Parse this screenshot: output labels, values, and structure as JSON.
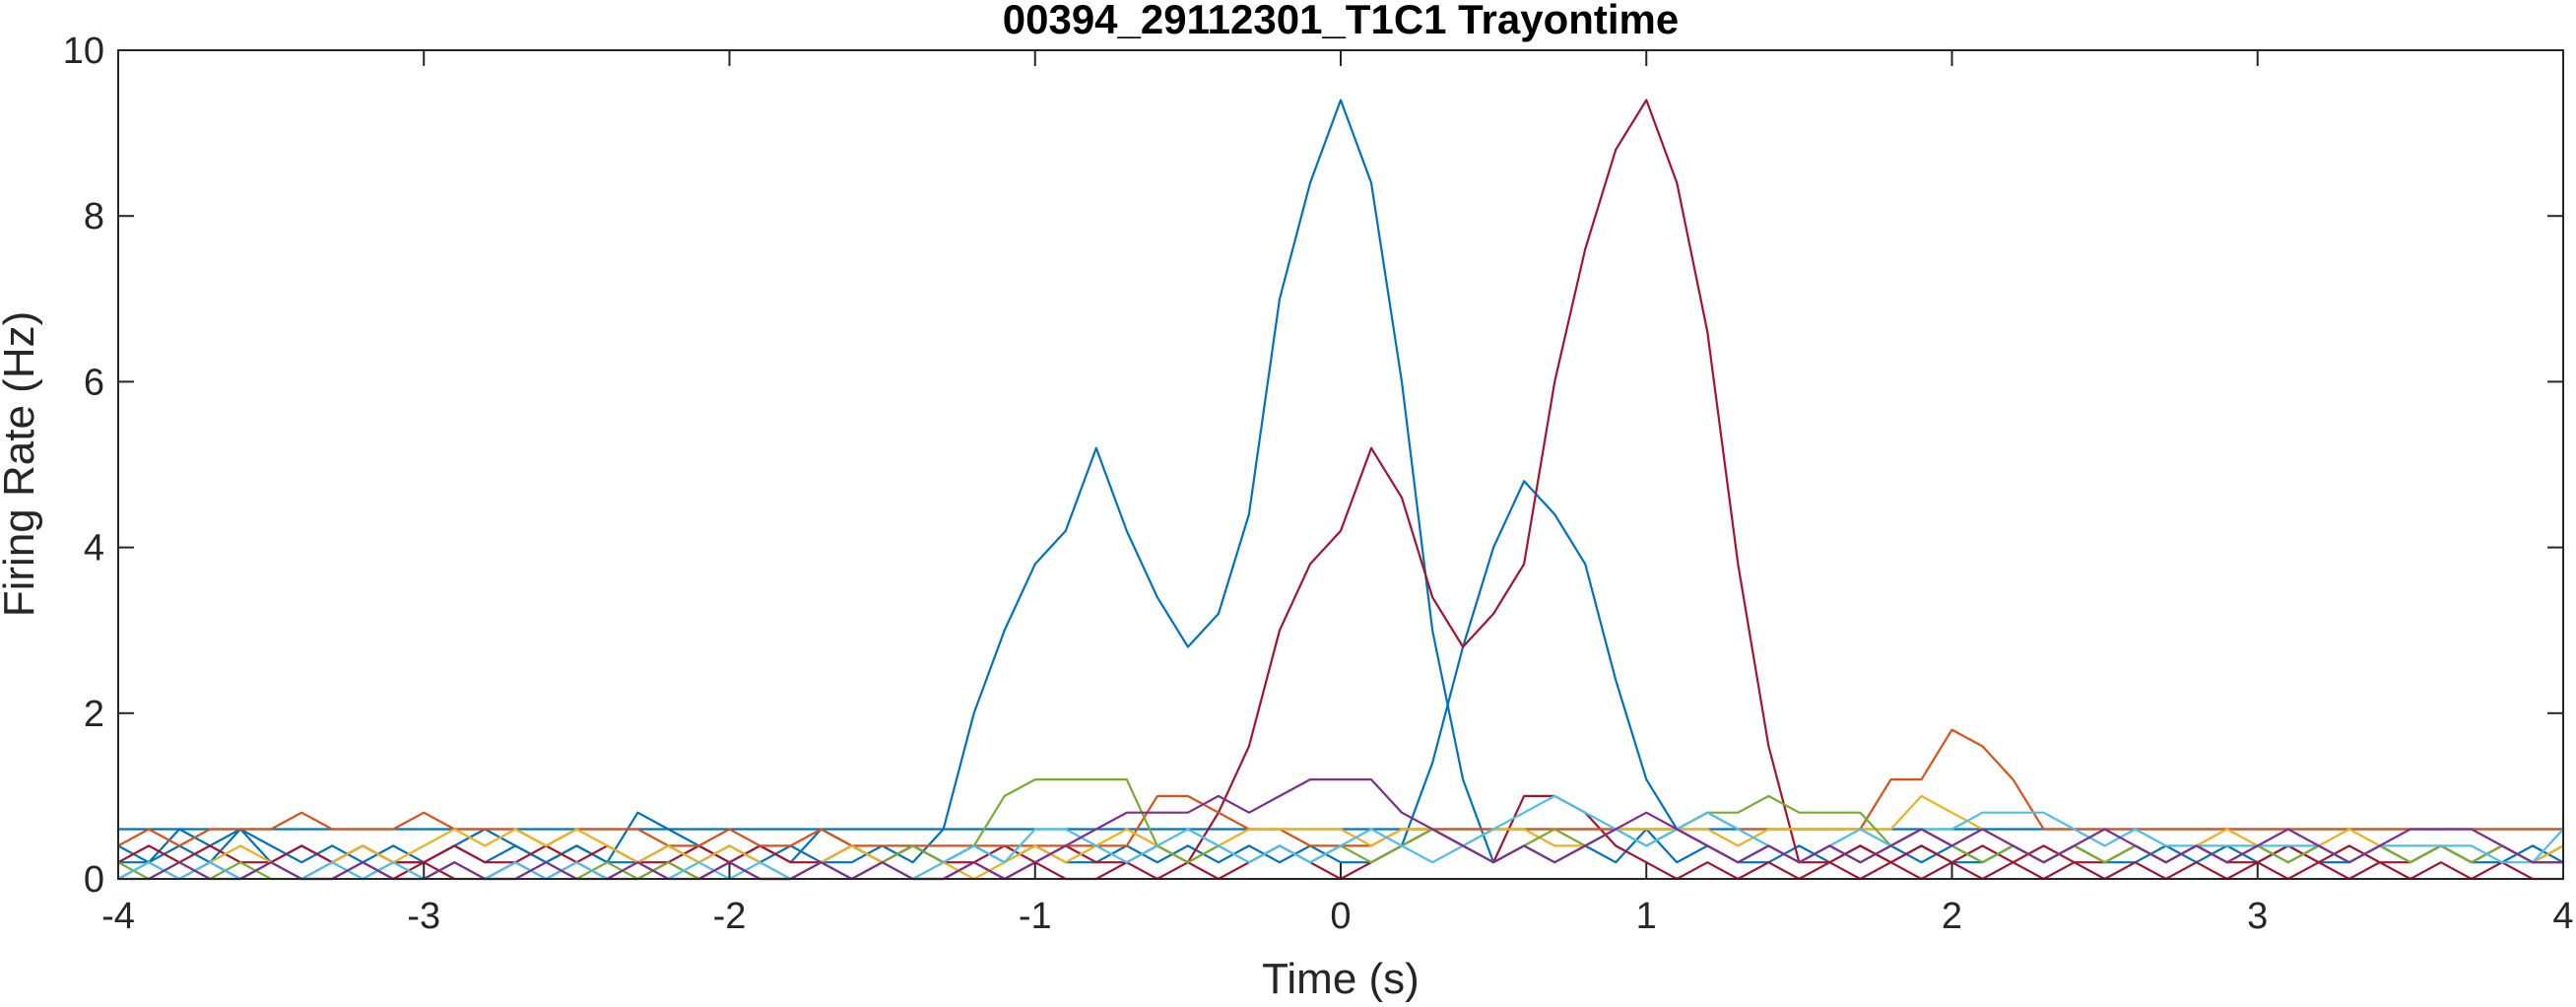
{
  "chart_data": {
    "type": "line",
    "title": "00394_29112301_T1C1 Trayontime",
    "xlabel": "Time (s)",
    "ylabel": "Firing Rate (Hz)",
    "xlim": [
      -4,
      4
    ],
    "ylim": [
      0,
      10
    ],
    "xticks": [
      "-4",
      "-3",
      "-2",
      "-1",
      "0",
      "1",
      "2",
      "3",
      "4"
    ],
    "yticks": [
      "0",
      "2",
      "4",
      "6",
      "8",
      "10"
    ],
    "grid": false,
    "legend": "none",
    "x": [
      -4.0,
      -3.9,
      -3.8,
      -3.7,
      -3.6,
      -3.5,
      -3.4,
      -3.3,
      -3.2,
      -3.1,
      -3.0,
      -2.9,
      -2.8,
      -2.7,
      -2.6,
      -2.5,
      -2.4,
      -2.3,
      -2.2,
      -2.1,
      -2.0,
      -1.9,
      -1.8,
      -1.7,
      -1.6,
      -1.5,
      -1.4,
      -1.3,
      -1.2,
      -1.1,
      -1.0,
      -0.9,
      -0.8,
      -0.7,
      -0.6,
      -0.5,
      -0.4,
      -0.3,
      -0.2,
      -0.1,
      0.0,
      0.1,
      0.2,
      0.3,
      0.4,
      0.5,
      0.6,
      0.7,
      0.8,
      0.9,
      1.0,
      1.1,
      1.2,
      1.3,
      1.4,
      1.5,
      1.6,
      1.7,
      1.8,
      1.9,
      2.0,
      2.1,
      2.2,
      2.3,
      2.4,
      2.5,
      2.6,
      2.7,
      2.8,
      2.9,
      3.0,
      3.1,
      3.2,
      3.3,
      3.4,
      3.5,
      3.6,
      3.7,
      3.8,
      3.9,
      4.0
    ],
    "series": [
      {
        "color": "#0072BD",
        "values": [
          0.6,
          0.6,
          0.6,
          0.6,
          0.6,
          0.6,
          0.6,
          0.6,
          0.6,
          0.6,
          0.6,
          0.6,
          0.6,
          0.6,
          0.6,
          0.6,
          0.6,
          0.6,
          0.6,
          0.6,
          0.6,
          0.6,
          0.6,
          0.6,
          0.6,
          0.6,
          0.6,
          0.6,
          0.6,
          0.6,
          0.6,
          0.6,
          0.6,
          0.6,
          0.6,
          0.6,
          0.6,
          0.6,
          0.6,
          0.6,
          0.6,
          0.6,
          0.6,
          0.6,
          0.6,
          0.6,
          0.6,
          0.6,
          0.6,
          0.6,
          0.6,
          0.6,
          0.6,
          0.6,
          0.6,
          0.6,
          0.6,
          0.6,
          0.6,
          0.6,
          0.6,
          0.6,
          0.6,
          0.6,
          0.6,
          0.6,
          0.6,
          0.6,
          0.6,
          0.6,
          0.6,
          0.6,
          0.6,
          0.6,
          0.6,
          0.6,
          0.6,
          0.6,
          0.6,
          0.6,
          0.6
        ]
      },
      {
        "color": "#0072BD",
        "values": [
          0.2,
          0.2,
          0.6,
          0.4,
          0.6,
          0.2,
          0.4,
          0.2,
          0.4,
          0.2,
          0.2,
          0.4,
          0.2,
          0.4,
          0.2,
          0.4,
          0.2,
          0.2,
          0.4,
          0.2,
          0.4,
          0.2,
          0.4,
          0.2,
          0.2,
          0.4,
          0.2,
          0.6,
          2.0,
          3.0,
          3.8,
          4.2,
          5.2,
          4.2,
          3.4,
          2.8,
          3.2,
          4.4,
          7.0,
          8.4,
          9.4,
          8.4,
          6.0,
          3.0,
          1.2,
          0.2,
          0.4,
          0.2,
          0.4,
          0.2,
          0.6,
          0.2,
          0.4,
          0.2,
          0.2,
          0.4,
          0.2,
          0.4,
          0.2,
          0.4,
          0.2,
          0.2,
          0.4,
          0.2,
          0.4,
          0.2,
          0.2,
          0.4,
          0.2,
          0.4,
          0.2,
          0.4,
          0.2,
          0.2,
          0.4,
          0.2,
          0.4,
          0.2,
          0.2,
          0.4,
          0.2
        ]
      },
      {
        "color": "#0072BD",
        "values": [
          0.4,
          0.2,
          0.4,
          0.2,
          0.6,
          0.4,
          0.2,
          0.4,
          0.2,
          0.4,
          0.2,
          0.4,
          0.6,
          0.4,
          0.2,
          0.4,
          0.2,
          0.8,
          0.6,
          0.4,
          0.2,
          0.4,
          0.2,
          0.6,
          0.4,
          0.2,
          0.4,
          0.2,
          0.4,
          0.2,
          0.4,
          0.2,
          0.2,
          0.4,
          0.2,
          0.4,
          0.2,
          0.4,
          0.2,
          0.4,
          0.2,
          0.2,
          0.4,
          1.4,
          2.8,
          4.0,
          4.8,
          4.4,
          3.8,
          2.4,
          1.2,
          0.6,
          0.4,
          0.2,
          0.4,
          0.2,
          0.4,
          0.2,
          0.4,
          0.2,
          0.4,
          0.2,
          0.4,
          0.2,
          0.4,
          0.2,
          0.4,
          0.2,
          0.4,
          0.2,
          0.4,
          0.2,
          0.4,
          0.2,
          0.4,
          0.2,
          0.4,
          0.2,
          0.4,
          0.2,
          0.4
        ]
      },
      {
        "color": "#A2142F",
        "values": [
          0.2,
          0.4,
          0.2,
          0.4,
          0.2,
          0.2,
          0.4,
          0.2,
          0.4,
          0.2,
          0.2,
          0.4,
          0.2,
          0.2,
          0.4,
          0.2,
          0.4,
          0.2,
          0.2,
          0.4,
          0.2,
          0.4,
          0.2,
          0.2,
          0.4,
          0.2,
          0.4,
          0.2,
          0.2,
          0.4,
          0.2,
          0.4,
          0.2,
          0.2,
          0.4,
          0.2,
          0.8,
          1.6,
          3.0,
          3.8,
          4.2,
          5.2,
          4.6,
          3.4,
          2.8,
          3.2,
          3.8,
          6.0,
          7.6,
          8.8,
          9.4,
          8.4,
          6.6,
          3.8,
          1.6,
          0.2,
          0.2,
          0.4,
          0.2,
          0.4,
          0.2,
          0.4,
          0.2,
          0.4,
          0.2,
          0.2,
          0.4,
          0.2,
          0.4,
          0.2,
          0.2,
          0.4,
          0.2,
          0.4,
          0.2,
          0.2,
          0.4,
          0.2,
          0.4,
          0.2,
          0.2
        ]
      },
      {
        "color": "#A2142F",
        "values": [
          0.0,
          0.2,
          0.0,
          0.2,
          0.0,
          0.2,
          0.0,
          0.0,
          0.2,
          0.0,
          0.2,
          0.0,
          0.0,
          0.2,
          0.0,
          0.2,
          0.0,
          0.0,
          0.2,
          0.0,
          0.2,
          0.0,
          0.0,
          0.2,
          0.0,
          0.2,
          0.0,
          0.0,
          0.2,
          0.0,
          0.2,
          0.0,
          0.0,
          0.2,
          0.0,
          0.2,
          0.0,
          0.2,
          0.4,
          0.2,
          0.0,
          0.2,
          0.4,
          0.6,
          0.4,
          0.2,
          1.0,
          1.0,
          0.8,
          0.4,
          0.2,
          0.0,
          0.2,
          0.0,
          0.2,
          0.0,
          0.2,
          0.0,
          0.2,
          0.0,
          0.2,
          0.0,
          0.2,
          0.0,
          0.2,
          0.0,
          0.2,
          0.0,
          0.2,
          0.0,
          0.2,
          0.0,
          0.2,
          0.0,
          0.2,
          0.0,
          0.2,
          0.0,
          0.2,
          0.0,
          0.0
        ]
      },
      {
        "color": "#D95319",
        "values": [
          0.4,
          0.6,
          0.4,
          0.6,
          0.6,
          0.6,
          0.8,
          0.6,
          0.6,
          0.6,
          0.8,
          0.6,
          0.6,
          0.6,
          0.4,
          0.6,
          0.6,
          0.6,
          0.4,
          0.4,
          0.6,
          0.4,
          0.4,
          0.6,
          0.4,
          0.4,
          0.4,
          0.4,
          0.4,
          0.4,
          0.4,
          0.4,
          0.4,
          0.4,
          1.0,
          1.0,
          0.8,
          0.6,
          0.6,
          0.4,
          0.4,
          0.4,
          0.6,
          0.6,
          0.6,
          0.6,
          0.6,
          0.6,
          0.6,
          0.6,
          0.6,
          0.6,
          0.8,
          0.6,
          0.6,
          0.6,
          0.6,
          0.6,
          1.2,
          1.2,
          1.8,
          1.6,
          1.2,
          0.6,
          0.6,
          0.6,
          0.6,
          0.6,
          0.6,
          0.6,
          0.6,
          0.6,
          0.6,
          0.6,
          0.6,
          0.6,
          0.6,
          0.6,
          0.6,
          0.6,
          0.6
        ]
      },
      {
        "color": "#EDB120",
        "values": [
          0.0,
          0.2,
          0.0,
          0.2,
          0.4,
          0.2,
          0.0,
          0.2,
          0.4,
          0.2,
          0.4,
          0.6,
          0.4,
          0.6,
          0.4,
          0.6,
          0.4,
          0.2,
          0.4,
          0.2,
          0.4,
          0.2,
          0.0,
          0.2,
          0.4,
          0.2,
          0.0,
          0.2,
          0.0,
          0.2,
          0.4,
          0.2,
          0.4,
          0.6,
          0.4,
          0.2,
          0.4,
          0.6,
          0.6,
          0.6,
          0.6,
          0.4,
          0.6,
          0.6,
          0.4,
          0.6,
          0.6,
          0.4,
          0.4,
          0.6,
          0.6,
          0.6,
          0.6,
          0.4,
          0.6,
          0.6,
          0.6,
          0.6,
          0.6,
          1.0,
          0.8,
          0.6,
          0.4,
          0.2,
          0.4,
          0.2,
          0.4,
          0.2,
          0.4,
          0.6,
          0.4,
          0.2,
          0.4,
          0.6,
          0.4,
          0.2,
          0.4,
          0.2,
          0.4,
          0.2,
          0.4
        ]
      },
      {
        "color": "#77AC30",
        "values": [
          0.2,
          0.0,
          0.2,
          0.0,
          0.2,
          0.0,
          0.0,
          0.2,
          0.0,
          0.2,
          0.0,
          0.2,
          0.0,
          0.0,
          0.2,
          0.0,
          0.2,
          0.0,
          0.2,
          0.0,
          0.2,
          0.0,
          0.0,
          0.2,
          0.0,
          0.2,
          0.4,
          0.2,
          0.4,
          1.0,
          1.2,
          1.2,
          1.2,
          1.2,
          0.4,
          0.2,
          0.4,
          0.2,
          0.4,
          0.2,
          0.4,
          0.2,
          0.4,
          0.6,
          0.4,
          0.2,
          0.4,
          0.6,
          0.4,
          0.6,
          0.4,
          0.6,
          0.8,
          0.8,
          1.0,
          0.8,
          0.8,
          0.8,
          0.4,
          0.6,
          0.4,
          0.2,
          0.4,
          0.2,
          0.4,
          0.2,
          0.4,
          0.2,
          0.4,
          0.2,
          0.4,
          0.2,
          0.4,
          0.2,
          0.4,
          0.2,
          0.4,
          0.2,
          0.4,
          0.2,
          0.2
        ]
      },
      {
        "color": "#4DBEEE",
        "values": [
          0.0,
          0.2,
          0.0,
          0.2,
          0.0,
          0.2,
          0.0,
          0.2,
          0.0,
          0.2,
          0.0,
          0.2,
          0.0,
          0.2,
          0.0,
          0.2,
          0.0,
          0.2,
          0.0,
          0.2,
          0.0,
          0.2,
          0.0,
          0.2,
          0.0,
          0.2,
          0.0,
          0.2,
          0.4,
          0.2,
          0.6,
          0.6,
          0.4,
          0.2,
          0.4,
          0.6,
          0.4,
          0.2,
          0.4,
          0.2,
          0.4,
          0.6,
          0.4,
          0.2,
          0.4,
          0.6,
          0.8,
          1.0,
          0.8,
          0.6,
          0.4,
          0.6,
          0.8,
          0.6,
          0.4,
          0.2,
          0.4,
          0.6,
          0.4,
          0.6,
          0.6,
          0.8,
          0.8,
          0.8,
          0.6,
          0.4,
          0.6,
          0.4,
          0.4,
          0.4,
          0.4,
          0.4,
          0.4,
          0.2,
          0.4,
          0.4,
          0.4,
          0.4,
          0.2,
          0.2,
          0.6
        ]
      },
      {
        "color": "#7E2F8E",
        "values": [
          0.0,
          0.0,
          0.2,
          0.0,
          0.0,
          0.2,
          0.0,
          0.0,
          0.2,
          0.0,
          0.0,
          0.2,
          0.0,
          0.0,
          0.2,
          0.0,
          0.0,
          0.2,
          0.0,
          0.0,
          0.2,
          0.0,
          0.0,
          0.2,
          0.0,
          0.2,
          0.0,
          0.0,
          0.2,
          0.0,
          0.2,
          0.4,
          0.6,
          0.8,
          0.8,
          0.8,
          1.0,
          0.8,
          1.0,
          1.2,
          1.2,
          1.2,
          0.8,
          0.6,
          0.4,
          0.2,
          0.4,
          0.2,
          0.4,
          0.6,
          0.8,
          0.6,
          0.4,
          0.2,
          0.4,
          0.2,
          0.4,
          0.2,
          0.4,
          0.6,
          0.4,
          0.6,
          0.4,
          0.2,
          0.4,
          0.6,
          0.4,
          0.2,
          0.4,
          0.2,
          0.4,
          0.6,
          0.4,
          0.2,
          0.4,
          0.6,
          0.6,
          0.6,
          0.4,
          0.2,
          0.2
        ]
      }
    ]
  }
}
